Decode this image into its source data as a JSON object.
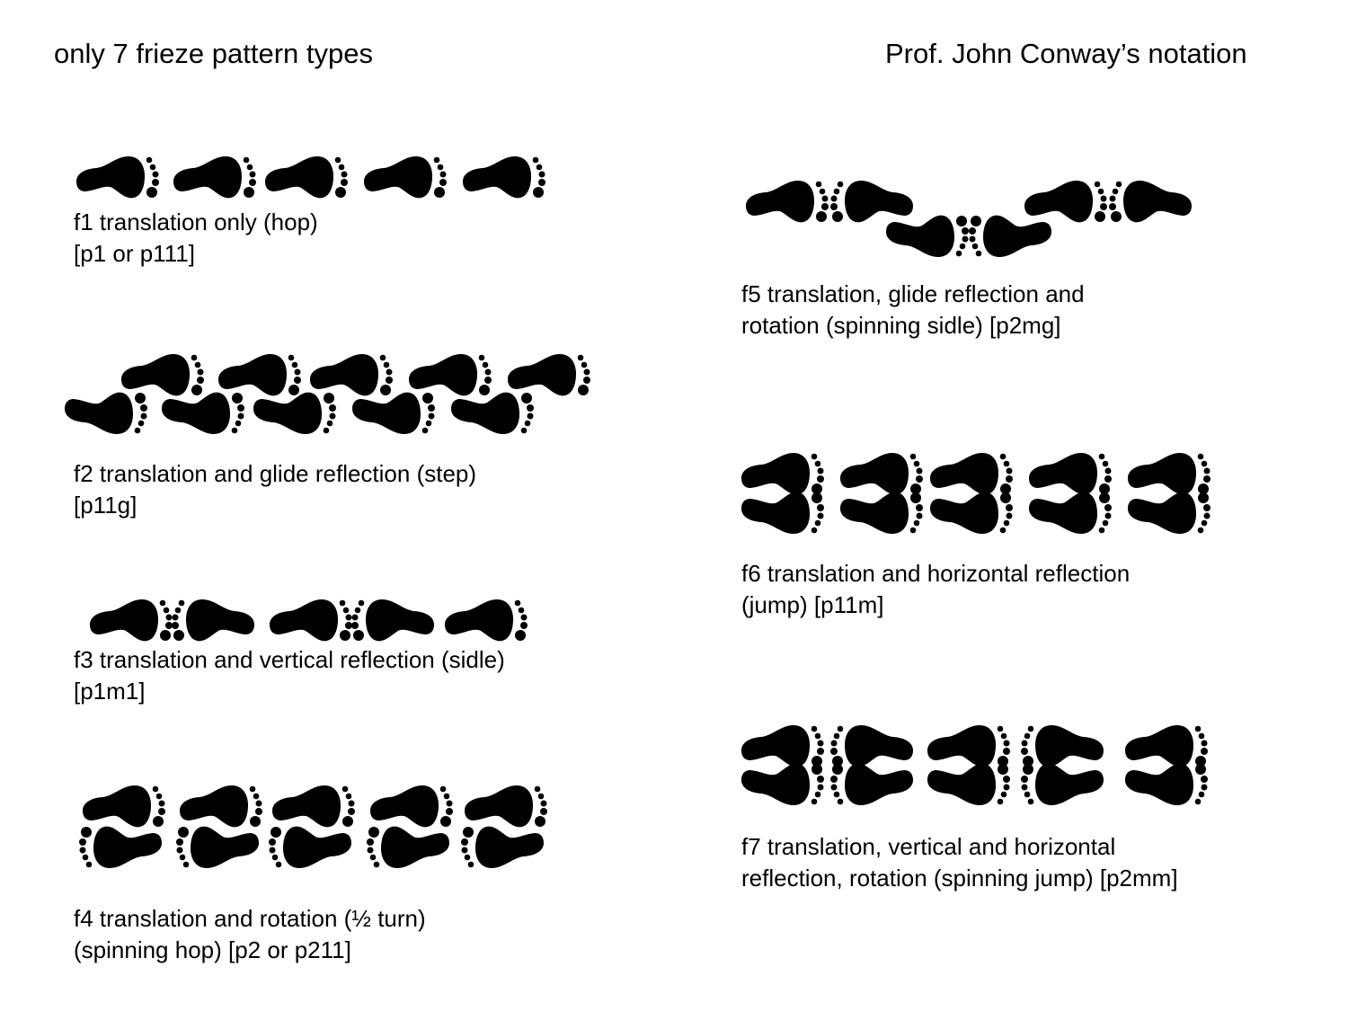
{
  "header": {
    "left": "only 7 frieze pattern types",
    "right": "Prof. John Conway’s notation"
  },
  "patterns": [
    {
      "id": "f1",
      "lines": [
        "f1 translation only (hop)",
        "[p1 or p111]"
      ]
    },
    {
      "id": "f2",
      "lines": [
        "f2 translation and glide reflection (step)",
        "[p11g]"
      ]
    },
    {
      "id": "f3",
      "lines": [
        "f3 translation and vertical reflection (sidle)",
        "[p1m1]"
      ]
    },
    {
      "id": "f4",
      "lines": [
        "f4 translation and rotation (½ turn)",
        "(spinning hop)  [p2 or p211]"
      ]
    },
    {
      "id": "f5",
      "lines": [
        "f5 translation, glide reflection and",
        "rotation (spinning sidle)  [p2mg]"
      ]
    },
    {
      "id": "f6",
      "lines": [
        "f6 translation and horizontal reflection",
        "(jump)  [p11m]"
      ]
    },
    {
      "id": "f7",
      "lines": [
        "f7 translation, vertical and horizontal",
        "reflection, rotation (spinning jump)  [p2mm]"
      ]
    }
  ],
  "colors": {
    "ink": "#000000",
    "background": "#ffffff"
  },
  "icon": "footprint-icon"
}
